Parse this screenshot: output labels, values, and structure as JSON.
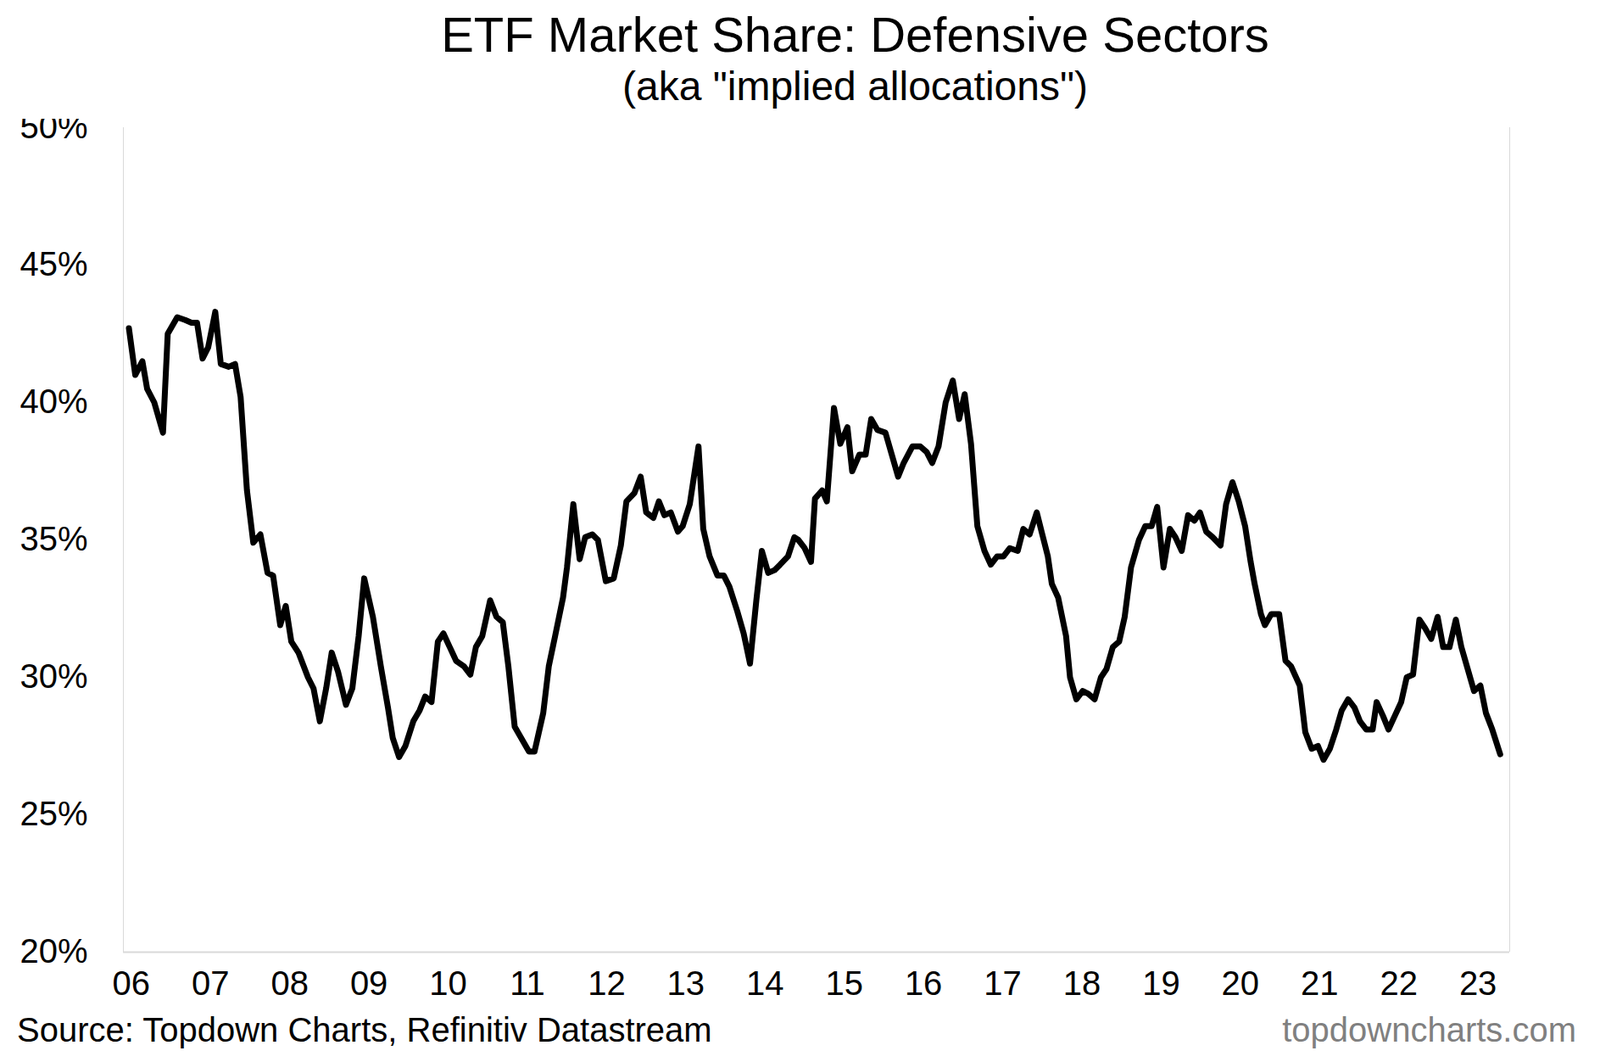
{
  "chart_data": {
    "type": "line",
    "title": "ETF Market Share: Defensive Sectors",
    "subtitle": "(aka \"implied allocations\")",
    "caption": "Source: Topdown Charts, Refinitiv Datastream",
    "credit": "topdowncharts.com",
    "color": "#000000",
    "grid": false,
    "xlim": [
      2005.9,
      2023.4
    ],
    "xticks": [
      {
        "value": 2006,
        "label": "06"
      },
      {
        "value": 2007,
        "label": "07"
      },
      {
        "value": 2008,
        "label": "08"
      },
      {
        "value": 2009,
        "label": "09"
      },
      {
        "value": 2010,
        "label": "10"
      },
      {
        "value": 2011,
        "label": "11"
      },
      {
        "value": 2012,
        "label": "12"
      },
      {
        "value": 2013,
        "label": "13"
      },
      {
        "value": 2014,
        "label": "14"
      },
      {
        "value": 2015,
        "label": "15"
      },
      {
        "value": 2016,
        "label": "16"
      },
      {
        "value": 2017,
        "label": "17"
      },
      {
        "value": 2018,
        "label": "18"
      },
      {
        "value": 2019,
        "label": "19"
      },
      {
        "value": 2020,
        "label": "20"
      },
      {
        "value": 2021,
        "label": "21"
      },
      {
        "value": 2022,
        "label": "22"
      },
      {
        "value": 2023,
        "label": "23"
      }
    ],
    "ylim": [
      20,
      50
    ],
    "yticks": [
      {
        "value": 20,
        "label": "20%"
      },
      {
        "value": 25,
        "label": "25%"
      },
      {
        "value": 30,
        "label": "30%"
      },
      {
        "value": 35,
        "label": "35%"
      },
      {
        "value": 40,
        "label": "40%"
      },
      {
        "value": 45,
        "label": "45%"
      },
      {
        "value": 50,
        "label": "50%"
      }
    ],
    "x": [
      2005.97,
      2006.05,
      2006.14,
      2006.2,
      2006.29,
      2006.4,
      2006.46,
      2006.58,
      2006.68,
      2006.76,
      2006.83,
      2006.9,
      2006.97,
      2007.06,
      2007.13,
      2007.23,
      2007.31,
      2007.38,
      2007.46,
      2007.54,
      2007.63,
      2007.72,
      2007.79,
      2007.88,
      2007.95,
      2008.02,
      2008.11,
      2008.23,
      2008.3,
      2008.38,
      2008.46,
      2008.53,
      2008.61,
      2008.71,
      2008.79,
      2008.87,
      2008.94,
      2009.05,
      2009.15,
      2009.24,
      2009.3,
      2009.38,
      2009.46,
      2009.56,
      2009.64,
      2009.71,
      2009.79,
      2009.87,
      2009.94,
      2010.02,
      2010.1,
      2010.2,
      2010.28,
      2010.35,
      2010.43,
      2010.53,
      2010.61,
      2010.69,
      2010.76,
      2010.84,
      2010.94,
      2011.02,
      2011.09,
      2011.2,
      2011.27,
      2011.35,
      2011.45,
      2011.5,
      2011.58,
      2011.66,
      2011.73,
      2011.82,
      2011.89,
      2011.99,
      2012.09,
      2012.18,
      2012.25,
      2012.35,
      2012.43,
      2012.5,
      2012.59,
      2012.66,
      2012.73,
      2012.81,
      2012.9,
      2012.96,
      2013.05,
      2013.16,
      2013.22,
      2013.3,
      2013.4,
      2013.48,
      2013.55,
      2013.65,
      2013.73,
      2013.81,
      2013.89,
      2013.96,
      2014.04,
      2014.12,
      2014.19,
      2014.29,
      2014.37,
      2014.42,
      2014.5,
      2014.58,
      2014.63,
      2014.72,
      2014.78,
      2014.87,
      2014.95,
      2015.04,
      2015.1,
      2015.19,
      2015.27,
      2015.34,
      2015.42,
      2015.52,
      2015.6,
      2015.68,
      2015.75,
      2015.86,
      2015.96,
      2016.04,
      2016.11,
      2016.19,
      2016.28,
      2016.37,
      2016.45,
      2016.52,
      2016.6,
      2016.68,
      2016.77,
      2016.85,
      2016.93,
      2017.01,
      2017.09,
      2017.19,
      2017.26,
      2017.34,
      2017.43,
      2017.5,
      2017.57,
      2017.62,
      2017.7,
      2017.8,
      2017.85,
      2017.93,
      2018.01,
      2018.08,
      2018.16,
      2018.24,
      2018.31,
      2018.39,
      2018.47,
      2018.54,
      2018.62,
      2018.72,
      2018.8,
      2018.88,
      2018.95,
      2019.03,
      2019.11,
      2019.18,
      2019.26,
      2019.34,
      2019.42,
      2019.49,
      2019.57,
      2019.65,
      2019.75,
      2019.82,
      2019.9,
      2019.98,
      2020.06,
      2020.13,
      2020.18,
      2020.26,
      2020.31,
      2020.39,
      2020.49,
      2020.57,
      2020.64,
      2020.75,
      2020.82,
      2020.9,
      2020.98,
      2021.05,
      2021.13,
      2021.21,
      2021.28,
      2021.36,
      2021.44,
      2021.51,
      2021.59,
      2021.67,
      2021.72,
      2021.8,
      2021.87,
      2021.95,
      2022.03,
      2022.1,
      2022.18,
      2022.26,
      2022.33,
      2022.41,
      2022.49,
      2022.56,
      2022.64,
      2022.72,
      2022.79,
      2022.87,
      2022.95,
      2023.03,
      2023.1,
      2023.18,
      2023.28
    ],
    "values": [
      42.7,
      41.0,
      41.5,
      40.5,
      40.0,
      38.9,
      42.5,
      43.1,
      43.0,
      42.9,
      42.9,
      41.6,
      42.0,
      43.3,
      41.4,
      41.3,
      41.4,
      40.2,
      36.8,
      34.9,
      35.2,
      33.8,
      33.7,
      31.9,
      32.6,
      31.3,
      30.9,
      30.0,
      29.6,
      28.4,
      29.6,
      30.9,
      30.2,
      29.0,
      29.6,
      31.5,
      33.6,
      32.2,
      30.4,
      28.9,
      27.8,
      27.1,
      27.5,
      28.4,
      28.8,
      29.3,
      29.1,
      31.3,
      31.6,
      31.1,
      30.6,
      30.4,
      30.1,
      31.1,
      31.5,
      32.8,
      32.2,
      32.0,
      30.4,
      28.2,
      27.7,
      27.3,
      27.3,
      28.7,
      30.4,
      31.5,
      32.9,
      34.0,
      36.3,
      34.3,
      35.1,
      35.2,
      35.0,
      33.5,
      33.6,
      34.8,
      36.4,
      36.7,
      37.3,
      36.0,
      35.8,
      36.4,
      35.9,
      36.0,
      35.3,
      35.5,
      36.3,
      38.4,
      35.4,
      34.4,
      33.7,
      33.7,
      33.3,
      32.4,
      31.6,
      30.5,
      32.8,
      34.6,
      33.8,
      33.9,
      34.1,
      34.4,
      35.1,
      35.0,
      34.7,
      34.2,
      36.5,
      36.8,
      36.4,
      39.8,
      38.5,
      39.1,
      37.5,
      38.1,
      38.1,
      39.4,
      39.0,
      38.9,
      38.1,
      37.3,
      37.8,
      38.4,
      38.4,
      38.2,
      37.8,
      38.4,
      40.0,
      40.8,
      39.4,
      40.3,
      38.5,
      35.5,
      34.6,
      34.1,
      34.4,
      34.4,
      34.7,
      34.6,
      35.4,
      35.2,
      36.0,
      35.2,
      34.4,
      33.4,
      32.9,
      31.5,
      30.0,
      29.2,
      29.5,
      29.4,
      29.2,
      30.0,
      30.3,
      31.1,
      31.3,
      32.2,
      34.0,
      35.0,
      35.5,
      35.5,
      36.2,
      34.0,
      35.4,
      35.1,
      34.6,
      35.9,
      35.7,
      36.0,
      35.3,
      35.1,
      34.8,
      36.3,
      37.1,
      36.4,
      35.5,
      34.2,
      33.4,
      32.3,
      31.9,
      32.3,
      32.3,
      30.6,
      30.4,
      29.7,
      28.0,
      27.4,
      27.5,
      27.0,
      27.4,
      28.1,
      28.8,
      29.2,
      28.9,
      28.4,
      28.1,
      28.1,
      29.1,
      28.6,
      28.1,
      28.6,
      29.1,
      30.0,
      30.1,
      32.1,
      31.8,
      31.4,
      32.2,
      31.1,
      31.1,
      32.1,
      31.1,
      30.3,
      29.5,
      29.7,
      28.7,
      28.1,
      27.2
    ]
  }
}
